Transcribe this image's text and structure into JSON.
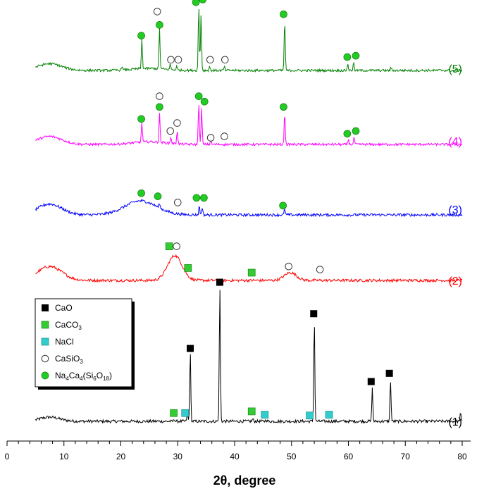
{
  "chart_data": {
    "type": "line",
    "title": "",
    "xlabel": "2θ, degree",
    "ylabel": "",
    "xlim": [
      0,
      82
    ],
    "xticks": [
      "0",
      "10",
      "20",
      "30",
      "40",
      "50",
      "60",
      "70",
      "80"
    ],
    "xtick_values": [
      0,
      10,
      20,
      30,
      40,
      50,
      60,
      70,
      80
    ],
    "grid": false,
    "colors": {
      "series1": "#000000",
      "series2": "#ff0000",
      "series3": "#0000ff",
      "series4": "#ff00ff",
      "series5": "#008000",
      "caco3": "#33cc33",
      "nacl": "#33cccc",
      "nasi": "#22cc22"
    },
    "legend": {
      "placement": "lower-left",
      "entries": [
        {
          "marker": "filled-square-black",
          "label": "CaO"
        },
        {
          "marker": "filled-square-green",
          "label": "CaCO3",
          "base": "CaCO",
          "sub": "3"
        },
        {
          "marker": "filled-square-cyan",
          "label": "NaCl"
        },
        {
          "marker": "open-circle",
          "label": "CaSiO3",
          "base": "CaSiO",
          "sub": "3"
        },
        {
          "marker": "filled-circle-green",
          "label": "Na4Ca4(Si6O18)",
          "parts": [
            {
              "t": "Na"
            },
            {
              "t": "4",
              "sub": true
            },
            {
              "t": "Ca"
            },
            {
              "t": "4",
              "sub": true
            },
            {
              "t": "(Si"
            },
            {
              "t": "6",
              "sub": true
            },
            {
              "t": "O"
            },
            {
              "t": "18",
              "sub": true
            },
            {
              "t": ")"
            }
          ]
        }
      ]
    },
    "series": [
      {
        "name": "(1)",
        "x_start": 5,
        "x_end": 80,
        "baseline_level": 0.06,
        "humps": [
          [
            7.5,
            0.025,
            2.5
          ]
        ],
        "peaks": [
          [
            29.4,
            0.015
          ],
          [
            31.7,
            0.05
          ],
          [
            32.2,
            0.42
          ],
          [
            37.4,
            0.82
          ],
          [
            43.2,
            0.015
          ],
          [
            45.5,
            0.01
          ],
          [
            54.0,
            0.62
          ],
          [
            64.2,
            0.2
          ],
          [
            67.4,
            0.25
          ],
          [
            79.7,
            0.05
          ]
        ],
        "markers": [
          {
            "x": 37.4,
            "type": "CaO",
            "offset": 0.84
          },
          {
            "x": 32.2,
            "type": "CaO",
            "offset": 0.44
          },
          {
            "x": 53.9,
            "type": "CaO",
            "offset": 0.65
          },
          {
            "x": 64.0,
            "type": "CaO",
            "offset": 0.24
          },
          {
            "x": 67.2,
            "type": "CaO",
            "offset": 0.29
          },
          {
            "x": 29.3,
            "type": "CaCO3",
            "offset": 0.05
          },
          {
            "x": 43.0,
            "type": "CaCO3",
            "offset": 0.06
          },
          {
            "x": 31.3,
            "type": "NaCl",
            "offset": 0.05
          },
          {
            "x": 45.3,
            "type": "NaCl",
            "offset": 0.04
          },
          {
            "x": 53.2,
            "type": "NaCl",
            "offset": 0.035
          },
          {
            "x": 56.6,
            "type": "NaCl",
            "offset": 0.04
          }
        ]
      },
      {
        "name": "(2)",
        "x_start": 5,
        "x_end": 80,
        "baseline_level": 0.0,
        "humps": [
          [
            7.5,
            0.09,
            3.0
          ],
          [
            29.5,
            0.16,
            1.8
          ],
          [
            49.8,
            0.05,
            1.5
          ]
        ],
        "peaks": [],
        "markers": [
          {
            "x": 28.5,
            "type": "CaCO3",
            "offset": 0.22
          },
          {
            "x": 31.8,
            "type": "CaCO3",
            "offset": 0.08
          },
          {
            "x": 43.0,
            "type": "CaCO3",
            "offset": 0.05
          },
          {
            "x": 29.8,
            "type": "CaSiO3",
            "offset": 0.22
          },
          {
            "x": 49.5,
            "type": "CaSiO3",
            "offset": 0.09
          },
          {
            "x": 55.0,
            "type": "CaSiO3",
            "offset": 0.07
          }
        ]
      },
      {
        "name": "(3)",
        "x_start": 5,
        "x_end": 80,
        "baseline_level": 0.0,
        "humps": [
          [
            7.5,
            0.07,
            3.0
          ],
          [
            23.5,
            0.09,
            4.0
          ]
        ],
        "peaks": [
          [
            26.8,
            0.03
          ],
          [
            33.8,
            0.06
          ],
          [
            34.3,
            0.05
          ],
          [
            48.8,
            0.04
          ]
        ],
        "markers": [
          {
            "x": 23.6,
            "type": "NaSi",
            "offset": 0.14
          },
          {
            "x": 26.5,
            "type": "NaSi",
            "offset": 0.12
          },
          {
            "x": 33.3,
            "type": "NaSi",
            "offset": 0.11
          },
          {
            "x": 34.6,
            "type": "NaSi",
            "offset": 0.11
          },
          {
            "x": 48.5,
            "type": "NaSi",
            "offset": 0.06
          },
          {
            "x": 30.0,
            "type": "CaSiO3",
            "offset": 0.08
          }
        ]
      },
      {
        "name": "(4)",
        "x_start": 5,
        "x_end": 80,
        "baseline_level": 0.0,
        "humps": [
          [
            7.5,
            0.06,
            3.0
          ],
          [
            25,
            0.02,
            4.0
          ]
        ],
        "peaks": [
          [
            23.7,
            0.15
          ],
          [
            26.8,
            0.22
          ],
          [
            28.8,
            0.05
          ],
          [
            29.9,
            0.1
          ],
          [
            33.7,
            0.32
          ],
          [
            34.2,
            0.28
          ],
          [
            35.8,
            0.03
          ],
          [
            48.8,
            0.24
          ],
          [
            60.0,
            0.04
          ],
          [
            61.0,
            0.05
          ]
        ],
        "markers": [
          {
            "x": 23.6,
            "type": "NaSi",
            "offset": 0.19
          },
          {
            "x": 26.8,
            "type": "NaSi",
            "offset": 0.28
          },
          {
            "x": 33.7,
            "type": "NaSi",
            "offset": 0.36
          },
          {
            "x": 34.7,
            "type": "NaSi",
            "offset": 0.32
          },
          {
            "x": 48.6,
            "type": "NaSi",
            "offset": 0.28
          },
          {
            "x": 59.8,
            "type": "NaSi",
            "offset": 0.08
          },
          {
            "x": 61.3,
            "type": "NaSi",
            "offset": 0.1
          },
          {
            "x": 26.8,
            "type": "CaSiO3",
            "offset": 0.36
          },
          {
            "x": 28.7,
            "type": "CaSiO3",
            "offset": 0.1
          },
          {
            "x": 29.9,
            "type": "CaSiO3",
            "offset": 0.16
          },
          {
            "x": 35.8,
            "type": "CaSiO3",
            "offset": 0.05
          },
          {
            "x": 38.2,
            "type": "CaSiO3",
            "offset": 0.06
          }
        ]
      },
      {
        "name": "(5)",
        "x_start": 5,
        "x_end": 80,
        "baseline_level": 0.0,
        "humps": [
          [
            7.5,
            0.05,
            3.0
          ],
          [
            25,
            0.015,
            4.0
          ]
        ],
        "peaks": [
          [
            20.2,
            0.03
          ],
          [
            23.7,
            0.22
          ],
          [
            26.8,
            0.3
          ],
          [
            28.7,
            0.04
          ],
          [
            29.8,
            0.03
          ],
          [
            33.7,
            0.48
          ],
          [
            34.1,
            0.43
          ],
          [
            35.6,
            0.03
          ],
          [
            38.2,
            0.03
          ],
          [
            48.8,
            0.38
          ],
          [
            59.9,
            0.05
          ],
          [
            60.9,
            0.06
          ],
          [
            67.5,
            0.02
          ]
        ],
        "markers": [
          {
            "x": 23.6,
            "type": "NaSi",
            "offset": 0.26
          },
          {
            "x": 26.8,
            "type": "NaSi",
            "offset": 0.34
          },
          {
            "x": 33.2,
            "type": "NaSi",
            "offset": 0.51
          },
          {
            "x": 34.4,
            "type": "NaSi",
            "offset": 0.53
          },
          {
            "x": 48.6,
            "type": "NaSi",
            "offset": 0.42
          },
          {
            "x": 59.8,
            "type": "NaSi",
            "offset": 0.1
          },
          {
            "x": 61.3,
            "type": "NaSi",
            "offset": 0.11
          },
          {
            "x": 26.4,
            "type": "CaSiO3",
            "offset": 0.44
          },
          {
            "x": 28.8,
            "type": "CaSiO3",
            "offset": 0.08
          },
          {
            "x": 30.1,
            "type": "CaSiO3",
            "offset": 0.08
          },
          {
            "x": 35.7,
            "type": "CaSiO3",
            "offset": 0.08
          },
          {
            "x": 38.3,
            "type": "CaSiO3",
            "offset": 0.08
          }
        ]
      }
    ]
  }
}
